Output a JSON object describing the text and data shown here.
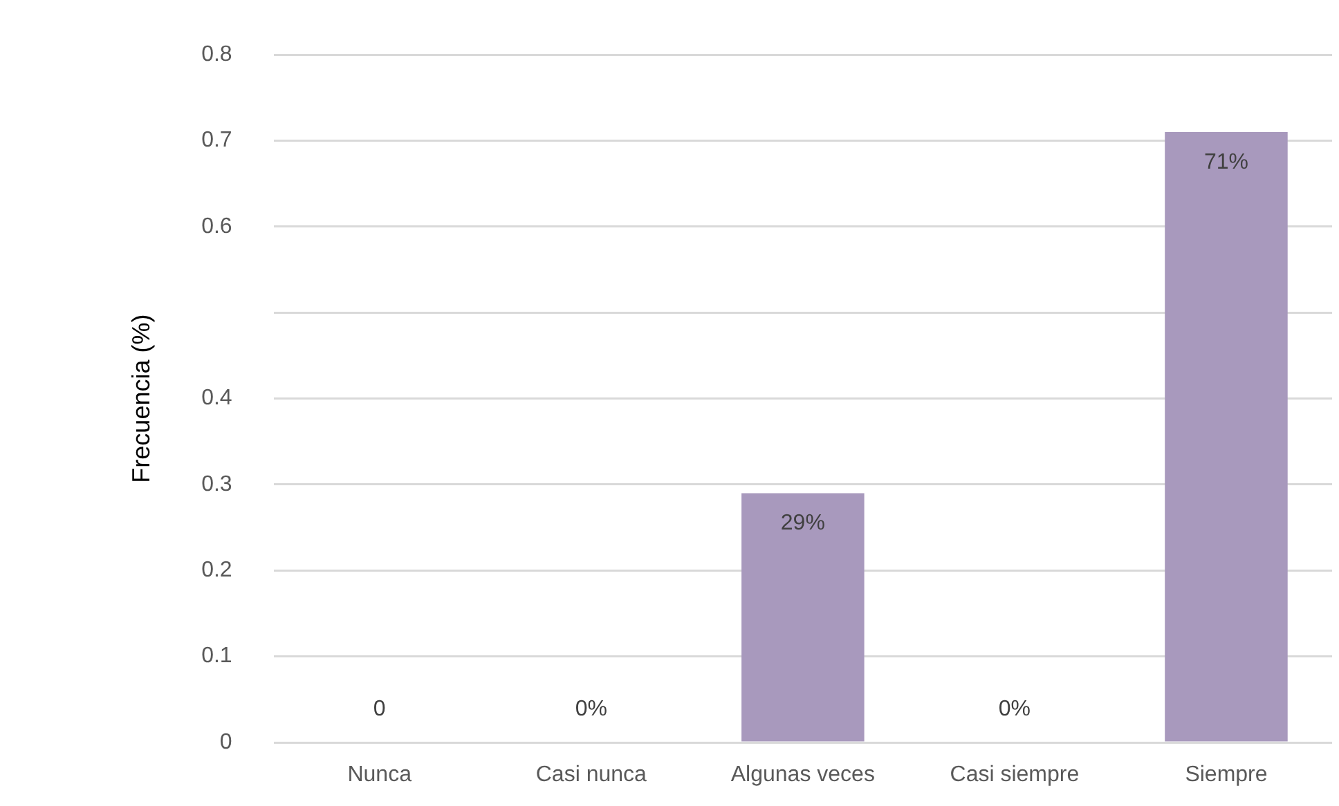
{
  "chart_data": {
    "type": "bar",
    "ylabel": "Frecuencia (%)",
    "categories": [
      "Nunca",
      "Casi nunca",
      "Algunas veces",
      "Casi siempre",
      "Siempre"
    ],
    "values": [
      0,
      0,
      0.29,
      0,
      0.71
    ],
    "value_labels": [
      "0",
      "0%",
      "29%",
      "0%",
      "71%"
    ],
    "color": "#a899bd",
    "ylim": [
      0,
      0.8
    ],
    "yticks": [
      0,
      0.1,
      0.2,
      0.3,
      0.4,
      {
        "value": 0.5,
        "label": null
      },
      0.6,
      0.7,
      0.8
    ],
    "grid": "y",
    "legend": false
  }
}
